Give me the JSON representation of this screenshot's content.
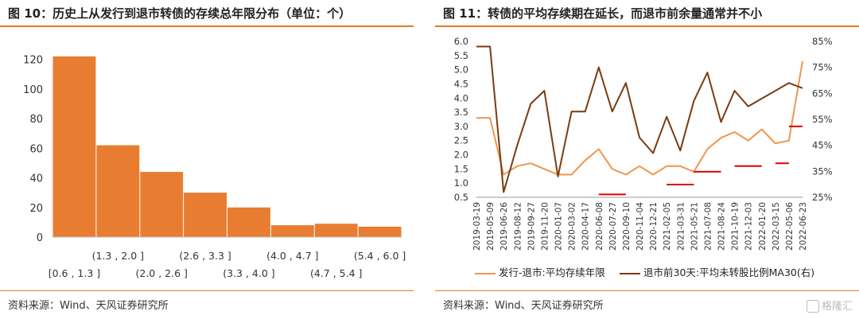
{
  "left": {
    "title": "图 10：历史上从发行到退市转债的存续总年限分布（单位：个）",
    "source": "资料来源：Wind、天风证券研究所",
    "chart_data": {
      "type": "bar",
      "categories": [
        "[0.6 , 1.3 ]",
        "(1.3 , 2.0 ]",
        "(2.0 , 2.6 ]",
        "(2.6 , 3.3 ]",
        "(3.3 , 4.0 ]",
        "(4.0 , 4.7 ]",
        "(4.7 , 5.4 ]",
        "(5.4 , 6.0 ]"
      ],
      "values": [
        122,
        62,
        44,
        30,
        20,
        8,
        9,
        7
      ],
      "ylim": [
        0,
        130
      ],
      "yticks": [
        "0",
        "20",
        "40",
        "60",
        "80",
        "100",
        "120"
      ],
      "color": "#e87d31",
      "grid": false
    }
  },
  "right": {
    "title": "图 11：转债的平均存续期在延长，而退市前余量通常并不小",
    "source": "资料来源：Wind、天风证券研究所",
    "chart_data": {
      "type": "line",
      "x": [
        "2019-03-19",
        "2019-05-09",
        "2019-06-26",
        "2019-08-12",
        "2019-09-27",
        "2019-11-20",
        "2020-01-07",
        "2020-03-02",
        "2020-04-17",
        "2020-06-08",
        "2020-07-27",
        "2020-09-10",
        "2020-11-04",
        "2020-12-21",
        "2021-02-05",
        "2021-03-31",
        "2021-05-21",
        "2021-07-08",
        "2021-08-24",
        "2021-10-19",
        "2021-12-03",
        "2022-01-20",
        "2022-03-15",
        "2022-05-06",
        "2022-06-23"
      ],
      "ylim_left": [
        0.5,
        6.0
      ],
      "yticks_left": [
        "0.5",
        "1.0",
        "1.5",
        "2.0",
        "2.5",
        "3.0",
        "3.5",
        "4.0",
        "4.5",
        "5.0",
        "5.5",
        "6.0"
      ],
      "ylim_right": [
        25,
        85
      ],
      "yticks_right": [
        "25%",
        "35%",
        "45%",
        "55%",
        "65%",
        "75%",
        "85%"
      ],
      "series": [
        {
          "name": "发行-退市:平均存续年限",
          "axis": "left",
          "color": "#f0954d",
          "values": [
            3.3,
            3.3,
            1.3,
            1.6,
            1.7,
            1.5,
            1.3,
            1.3,
            1.8,
            2.2,
            1.5,
            1.3,
            1.6,
            1.3,
            1.6,
            1.6,
            1.4,
            2.2,
            2.6,
            2.8,
            2.5,
            2.9,
            2.4,
            2.5,
            5.3
          ]
        },
        {
          "name": "退市前30天:平均未转股比例MA30(右)",
          "axis": "right",
          "color": "#7a3b10",
          "values": [
            83,
            83,
            27,
            45,
            61,
            66,
            33,
            58,
            58,
            75,
            58,
            69,
            48,
            42,
            56,
            43,
            62,
            73,
            54,
            66,
            60,
            63,
            66,
            69,
            67
          ]
        }
      ],
      "reference_lines": [
        {
          "from": "2020-06-08",
          "to": "2020-09-10",
          "value": 0.6
        },
        {
          "from": "2021-02-05",
          "to": "2021-05-21",
          "value": 0.95
        },
        {
          "from": "2021-05-21",
          "to": "2021-08-24",
          "value": 1.4
        },
        {
          "from": "2021-10-19",
          "to": "2022-01-20",
          "value": 1.6
        },
        {
          "from": "2022-03-15",
          "to": "2022-05-06",
          "value": 1.7
        },
        {
          "from": "2022-05-06",
          "to": "2022-06-23",
          "value": 3.0
        }
      ],
      "reference_color": "#e00000",
      "legend_position": "bottom"
    },
    "watermark": "格隆汇"
  }
}
